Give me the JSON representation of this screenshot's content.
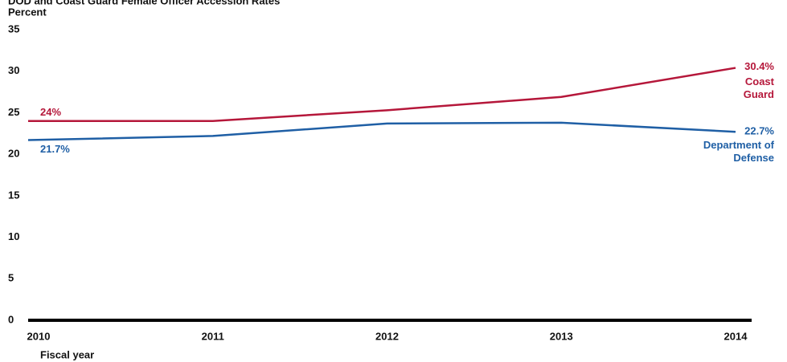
{
  "chart_data": {
    "type": "line",
    "title": "DOD and Coast Guard Female Officer Accession Rates",
    "y_label": "Percent",
    "x_label": "Fiscal year",
    "categories": [
      "2010",
      "2011",
      "2012",
      "2013",
      "2014"
    ],
    "series": [
      {
        "name": "Coast Guard",
        "color": "#b5173a",
        "values": [
          24,
          24,
          25.3,
          26.9,
          30.4
        ],
        "value_labels": [
          "24%",
          null,
          null,
          null,
          "30.4%"
        ]
      },
      {
        "name": "Department of Defense",
        "color": "#1f5fa5",
        "values": [
          21.7,
          22.2,
          23.7,
          23.8,
          22.7
        ],
        "value_labels": [
          "21.7%",
          null,
          null,
          null,
          "22.7%"
        ]
      }
    ],
    "ylim": [
      0,
      35
    ],
    "yticks": [
      0,
      5,
      10,
      15,
      20,
      25,
      30,
      35
    ],
    "grid": false
  }
}
